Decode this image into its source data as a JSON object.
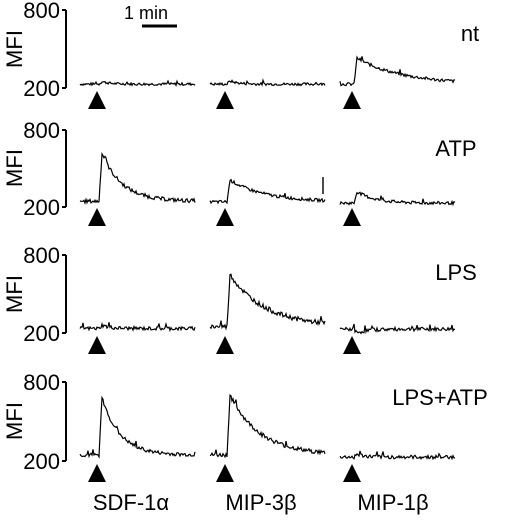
{
  "chart_data": {
    "type": "line",
    "title": "",
    "ylabel": "MFI",
    "y_ticks": [
      "800",
      "200"
    ],
    "ylim": [
      200,
      800
    ],
    "scale_bar_label": "1 min",
    "stimuli": [
      "SDF-1α",
      "MIP-3β",
      "MIP-1β"
    ],
    "panels": [
      {
        "condition": "nt",
        "traces": [
          {
            "stimulus": "SDF-1α",
            "baseline": 230,
            "peak": 250,
            "decay": 8,
            "noise": 10
          },
          {
            "stimulus": "MIP-3β",
            "baseline": 230,
            "peak": 255,
            "decay": 8,
            "noise": 10
          },
          {
            "stimulus": "MIP-1β",
            "baseline": 230,
            "peak": 430,
            "decay": 45,
            "noise": 12
          }
        ]
      },
      {
        "condition": "ATP",
        "traces": [
          {
            "stimulus": "SDF-1α",
            "baseline": 245,
            "peak": 620,
            "decay": 20,
            "noise": 15
          },
          {
            "stimulus": "MIP-3β",
            "baseline": 240,
            "peak": 410,
            "decay": 35,
            "noise": 12
          },
          {
            "stimulus": "MIP-1β",
            "baseline": 230,
            "peak": 320,
            "decay": 18,
            "noise": 12
          }
        ]
      },
      {
        "condition": "LPS",
        "traces": [
          {
            "stimulus": "SDF-1α",
            "baseline": 235,
            "peak": 260,
            "decay": 8,
            "noise": 14
          },
          {
            "stimulus": "MIP-3β",
            "baseline": 250,
            "peak": 650,
            "decay": 35,
            "noise": 18
          },
          {
            "stimulus": "MIP-1β",
            "baseline": 230,
            "peak": 200,
            "decay": 10,
            "noise": 14
          }
        ]
      },
      {
        "condition": "LPS+ATP",
        "traces": [
          {
            "stimulus": "SDF-1α",
            "baseline": 245,
            "peak": 680,
            "decay": 18,
            "noise": 14
          },
          {
            "stimulus": "MIP-3β",
            "baseline": 245,
            "peak": 700,
            "decay": 30,
            "noise": 16
          },
          {
            "stimulus": "MIP-1β",
            "baseline": 230,
            "peak": 250,
            "decay": 8,
            "noise": 14
          }
        ]
      }
    ]
  }
}
